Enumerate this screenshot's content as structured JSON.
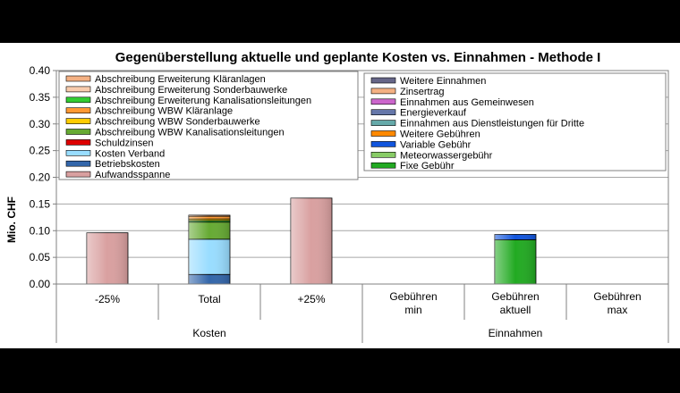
{
  "chart_data": {
    "type": "bar",
    "stacked": true,
    "title": "Gegenüberstellung aktuelle und geplante Kosten vs. Einnahmen - Methode I",
    "ylabel": "Mio. CHF",
    "ylim": [
      0,
      0.4
    ],
    "yticks": [
      "0.00",
      "0.05",
      "0.10",
      "0.15",
      "0.20",
      "0.25",
      "0.30",
      "0.35",
      "0.40"
    ],
    "grid": true,
    "categories": [
      "-25%",
      "Total",
      "+25%",
      "Gebühren min",
      "Gebühren aktuell",
      "Gebühren max"
    ],
    "category_lines": [
      [
        "-25%"
      ],
      [
        "Total"
      ],
      [
        "+25%"
      ],
      [
        "Gebühren",
        "min"
      ],
      [
        "Gebühren",
        "aktuell"
      ],
      [
        "Gebühren",
        "max"
      ]
    ],
    "groups": [
      {
        "label": "Kosten",
        "categories": [
          "-25%",
          "Total",
          "+25%"
        ]
      },
      {
        "label": "Einnahmen",
        "categories": [
          "Gebühren min",
          "Gebühren aktuell",
          "Gebühren max"
        ]
      }
    ],
    "legend_left": [
      "Abschreibung Erweiterung Kläranlagen",
      "Abschreibung Erweiterung Sonderbauwerke",
      "Abschreibung Erweiterung Kanalisationsleitungen",
      "Abschreibung WBW Kläranlage",
      "Abschreibung WBW Sonderbauwerke",
      "Abschreibung WBW Kanalisationsleitungen",
      "Schuldzinsen",
      "Kosten Verband",
      "Betriebskosten",
      "Aufwandsspanne"
    ],
    "legend_right": [
      "Weitere Einnahmen",
      "Zinsertrag",
      "Einnahmen aus Gemeinwesen",
      "Energieverkauf",
      "Einnahmen aus Dienstleistungen für Dritte",
      "Weitere Gebühren",
      "Variable Gebühr",
      "Meteorwassergebühr",
      "Fixe Gebühr"
    ],
    "series_colors": {
      "Abschreibung Erweiterung Kläranlagen": "#F4B183",
      "Abschreibung Erweiterung Sonderbauwerke": "#F8CBAD",
      "Abschreibung Erweiterung Kanalisationsleitungen": "#33CC33",
      "Abschreibung WBW Kläranlage": "#FF9933",
      "Abschreibung WBW Sonderbauwerke": "#FFCC00",
      "Abschreibung WBW Kanalisationsleitungen": "#66AA33",
      "Schuldzinsen": "#DD0000",
      "Kosten Verband": "#99DDFF",
      "Betriebskosten": "#3366AA",
      "Aufwandsspanne": "#D9A0A0",
      "Weitere Einnahmen": "#666688",
      "Zinsertrag": "#F4B183",
      "Einnahmen aus Gemeinwesen": "#CC66CC",
      "Energieverkauf": "#6677AA",
      "Einnahmen aus Dienstleistungen für Dritte": "#66AAAA",
      "Weitere Gebühren": "#FF8800",
      "Variable Gebühr": "#1155DD",
      "Meteorwassergebühr": "#88CC66",
      "Fixe Gebühr": "#22AA22"
    },
    "bars": [
      {
        "category": "-25%",
        "segments": [
          {
            "series": "Aufwandsspanne",
            "value": 0.096
          }
        ]
      },
      {
        "category": "Total",
        "segments": [
          {
            "series": "Betriebskosten",
            "value": 0.018
          },
          {
            "series": "Kosten Verband",
            "value": 0.066
          },
          {
            "series": "Abschreibung WBW Kanalisationsleitungen",
            "value": 0.032
          },
          {
            "series": "Abschreibung Erweiterung Kanalisationsleitungen",
            "value": 0.003
          },
          {
            "series": "Abschreibung WBW Sonderbauwerke",
            "value": 0.003
          },
          {
            "series": "Abschreibung WBW Kläranlage",
            "value": 0.005
          },
          {
            "series": "Abschreibung Erweiterung Kläranlagen",
            "value": 0.002
          }
        ]
      },
      {
        "category": "+25%",
        "segments": [
          {
            "series": "Aufwandsspanne",
            "value": 0.161
          }
        ]
      },
      {
        "category": "Gebühren min",
        "segments": []
      },
      {
        "category": "Gebühren aktuell",
        "segments": [
          {
            "series": "Fixe Gebühr",
            "value": 0.083
          },
          {
            "series": "Variable Gebühr",
            "value": 0.01
          }
        ]
      },
      {
        "category": "Gebühren max",
        "segments": []
      }
    ]
  }
}
